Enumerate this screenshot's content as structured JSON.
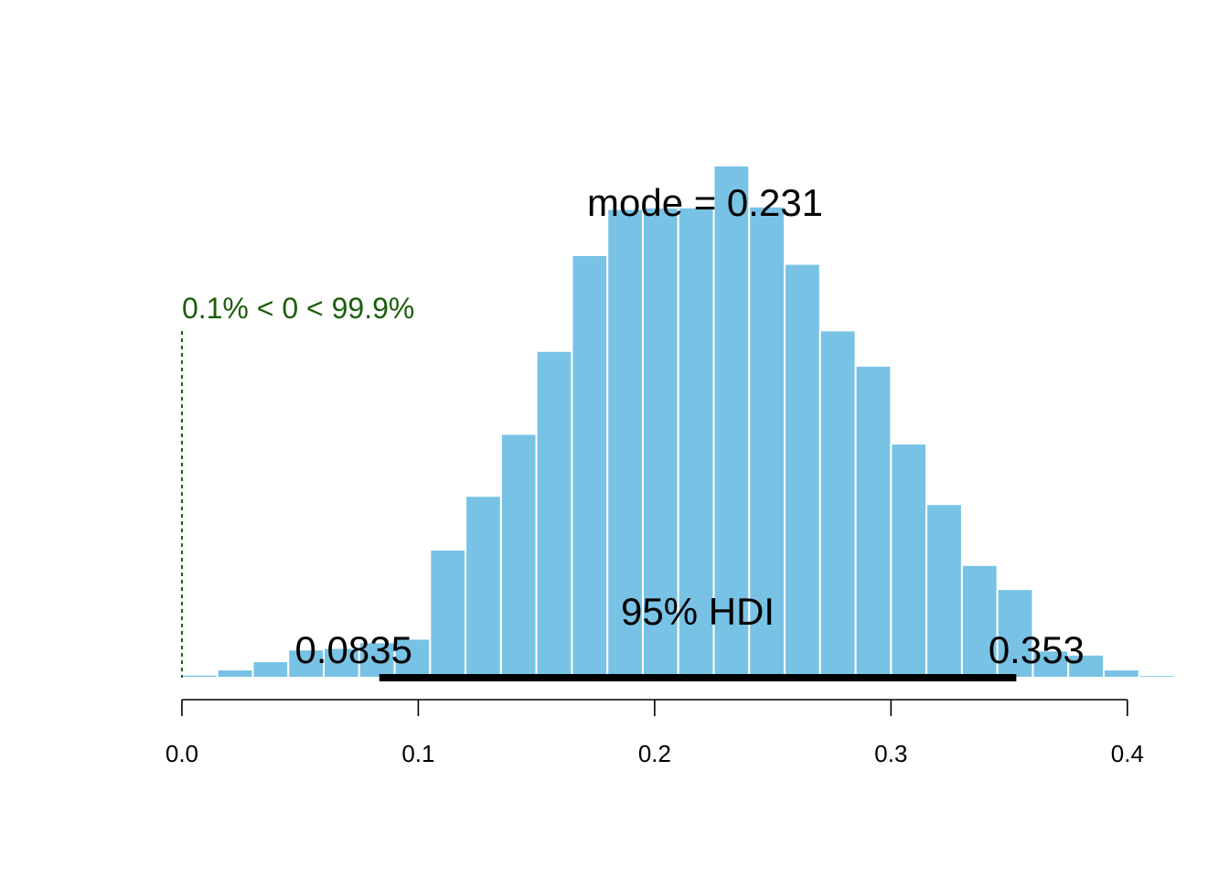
{
  "chart_data": {
    "type": "bar",
    "subtype": "histogram",
    "title": "",
    "xlabel": "",
    "ylabel": "",
    "xlim": [
      -0.017,
      0.443
    ],
    "ylim": [
      0,
      100
    ],
    "grid": false,
    "bar_color": "#78C2E5",
    "bar_edge_color": "#FFFFFF",
    "bin_width": 0.015,
    "bins": [
      {
        "start": -0.015,
        "end": 0.0,
        "height": 0.3
      },
      {
        "start": 0.0,
        "end": 0.015,
        "height": 0.6
      },
      {
        "start": 0.015,
        "end": 0.03,
        "height": 1.6
      },
      {
        "start": 0.03,
        "end": 0.045,
        "height": 3.2
      },
      {
        "start": 0.045,
        "end": 0.06,
        "height": 5.5
      },
      {
        "start": 0.06,
        "end": 0.075,
        "height": 5.8
      },
      {
        "start": 0.075,
        "end": 0.09,
        "height": 6.9
      },
      {
        "start": 0.09,
        "end": 0.105,
        "height": 7.6
      },
      {
        "start": 0.105,
        "end": 0.12,
        "height": 25.0
      },
      {
        "start": 0.12,
        "end": 0.135,
        "height": 35.5
      },
      {
        "start": 0.135,
        "end": 0.15,
        "height": 47.6
      },
      {
        "start": 0.15,
        "end": 0.165,
        "height": 63.8
      },
      {
        "start": 0.165,
        "end": 0.18,
        "height": 82.5
      },
      {
        "start": 0.18,
        "end": 0.195,
        "height": 91.5
      },
      {
        "start": 0.195,
        "end": 0.21,
        "height": 91.8
      },
      {
        "start": 0.21,
        "end": 0.225,
        "height": 91.8
      },
      {
        "start": 0.225,
        "end": 0.24,
        "height": 100.0
      },
      {
        "start": 0.24,
        "end": 0.255,
        "height": 92.0
      },
      {
        "start": 0.255,
        "end": 0.27,
        "height": 80.8
      },
      {
        "start": 0.27,
        "end": 0.285,
        "height": 67.8
      },
      {
        "start": 0.285,
        "end": 0.3,
        "height": 60.9
      },
      {
        "start": 0.3,
        "end": 0.315,
        "height": 45.7
      },
      {
        "start": 0.315,
        "end": 0.33,
        "height": 33.9
      },
      {
        "start": 0.33,
        "end": 0.345,
        "height": 22.0
      },
      {
        "start": 0.345,
        "end": 0.36,
        "height": 17.3
      },
      {
        "start": 0.36,
        "end": 0.375,
        "height": 5.3
      },
      {
        "start": 0.375,
        "end": 0.39,
        "height": 4.5
      },
      {
        "start": 0.39,
        "end": 0.405,
        "height": 1.6
      },
      {
        "start": 0.405,
        "end": 0.42,
        "height": 0.5
      },
      {
        "start": 0.42,
        "end": 0.435,
        "height": 0.2
      }
    ],
    "x_ticks": [
      0.0,
      0.1,
      0.2,
      0.3,
      0.4
    ],
    "x_tick_labels": [
      "0.0",
      "0.1",
      "0.2",
      "0.3",
      "0.4"
    ],
    "mode": {
      "value": 0.231,
      "label": "mode = 0.231"
    },
    "hdi": {
      "label": "95% HDI",
      "low": 0.0835,
      "high": 0.353,
      "low_label": "0.0835",
      "high_label": "0.353"
    },
    "comparison": {
      "value": 0,
      "label": "0.1% < 0 < 99.9%",
      "color": "#1B5E0A"
    }
  }
}
